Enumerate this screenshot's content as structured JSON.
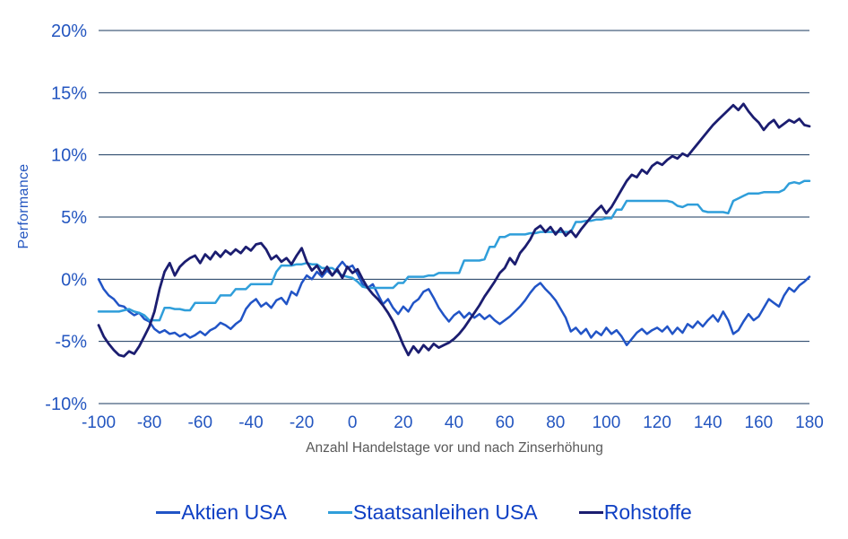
{
  "chart_data": {
    "type": "line",
    "title": "",
    "ylabel": "Performance",
    "xlabel": "Anzahl Handelstage vor und nach Zinserhöhung",
    "grid": "horizontal",
    "legend_position": "bottom",
    "xlim": [
      -100,
      180
    ],
    "ylim": [
      -10,
      20
    ],
    "xticks": [
      -100,
      -80,
      -60,
      -40,
      -20,
      0,
      20,
      40,
      60,
      80,
      100,
      120,
      140,
      160,
      180
    ],
    "yticks": [
      {
        "value": 20,
        "label": "20%"
      },
      {
        "value": 15,
        "label": "15%"
      },
      {
        "value": 10,
        "label": "10%"
      },
      {
        "value": 5,
        "label": "5%"
      },
      {
        "value": 0,
        "label": "0%"
      },
      {
        "value": -5,
        "label": "-5%"
      },
      {
        "value": -10,
        "label": "-10%"
      }
    ],
    "x": {
      "start": -100,
      "end": 180,
      "step": 2,
      "unit": "Handelstage"
    },
    "y_unit": "%",
    "series": [
      {
        "name": "Aktien USA",
        "color": "#2154c6",
        "values": [
          0.0,
          -0.8,
          -1.3,
          -1.6,
          -2.1,
          -2.2,
          -2.6,
          -2.9,
          -2.7,
          -3.2,
          -3.4,
          -4.0,
          -4.3,
          -4.1,
          -4.4,
          -4.3,
          -4.6,
          -4.4,
          -4.7,
          -4.5,
          -4.2,
          -4.5,
          -4.1,
          -3.9,
          -3.5,
          -3.7,
          -4.0,
          -3.6,
          -3.3,
          -2.4,
          -1.9,
          -1.6,
          -2.2,
          -1.9,
          -2.3,
          -1.7,
          -1.5,
          -2.0,
          -1.0,
          -1.3,
          -0.3,
          0.3,
          0.0,
          0.6,
          0.2,
          0.7,
          0.3,
          0.9,
          1.4,
          0.9,
          1.1,
          0.4,
          -0.4,
          -0.7,
          -0.4,
          -1.2,
          -2.0,
          -1.6,
          -2.3,
          -2.8,
          -2.2,
          -2.6,
          -1.9,
          -1.6,
          -1.0,
          -0.8,
          -1.5,
          -2.3,
          -2.9,
          -3.4,
          -2.9,
          -2.6,
          -3.1,
          -2.7,
          -3.1,
          -2.8,
          -3.2,
          -2.9,
          -3.3,
          -3.6,
          -3.3,
          -3.0,
          -2.6,
          -2.2,
          -1.7,
          -1.1,
          -0.6,
          -0.3,
          -0.8,
          -1.2,
          -1.7,
          -2.4,
          -3.1,
          -4.2,
          -3.9,
          -4.4,
          -4.0,
          -4.7,
          -4.2,
          -4.5,
          -3.9,
          -4.4,
          -4.1,
          -4.6,
          -5.3,
          -4.8,
          -4.3,
          -4.0,
          -4.4,
          -4.1,
          -3.9,
          -4.2,
          -3.8,
          -4.4,
          -3.9,
          -4.3,
          -3.6,
          -3.9,
          -3.4,
          -3.8,
          -3.3,
          -2.9,
          -3.4,
          -2.6,
          -3.3,
          -4.4,
          -4.1,
          -3.4,
          -2.8,
          -3.3,
          -3.0,
          -2.3,
          -1.6,
          -1.9,
          -2.2,
          -1.3,
          -0.7,
          -1.0,
          -0.5,
          -0.2,
          0.2
        ]
      },
      {
        "name": "Staatsanleihen USA",
        "color": "#2f9eda",
        "values": [
          -2.6,
          -2.6,
          -2.6,
          -2.6,
          -2.6,
          -2.5,
          -2.4,
          -2.6,
          -2.7,
          -2.9,
          -3.3,
          -3.3,
          -3.3,
          -2.3,
          -2.3,
          -2.4,
          -2.4,
          -2.5,
          -2.5,
          -1.9,
          -1.9,
          -1.9,
          -1.9,
          -1.9,
          -1.3,
          -1.3,
          -1.3,
          -0.8,
          -0.8,
          -0.8,
          -0.4,
          -0.4,
          -0.4,
          -0.4,
          -0.4,
          0.6,
          1.1,
          1.1,
          1.1,
          1.2,
          1.2,
          1.3,
          1.2,
          1.2,
          0.9,
          0.9,
          0.9,
          0.6,
          0.3,
          0.2,
          0.1,
          -0.2,
          -0.6,
          -0.7,
          -0.7,
          -0.7,
          -0.7,
          -0.7,
          -0.7,
          -0.3,
          -0.3,
          0.2,
          0.2,
          0.2,
          0.2,
          0.3,
          0.3,
          0.5,
          0.5,
          0.5,
          0.5,
          0.5,
          1.5,
          1.5,
          1.5,
          1.5,
          1.6,
          2.6,
          2.6,
          3.4,
          3.4,
          3.6,
          3.6,
          3.6,
          3.6,
          3.7,
          3.7,
          3.8,
          3.8,
          3.8,
          3.8,
          3.8,
          3.8,
          3.8,
          4.6,
          4.6,
          4.7,
          4.7,
          4.8,
          4.8,
          4.9,
          4.9,
          5.6,
          5.6,
          6.3,
          6.3,
          6.3,
          6.3,
          6.3,
          6.3,
          6.3,
          6.3,
          6.3,
          6.2,
          5.9,
          5.8,
          6.0,
          6.0,
          6.0,
          5.5,
          5.4,
          5.4,
          5.4,
          5.4,
          5.3,
          6.3,
          6.5,
          6.7,
          6.9,
          6.9,
          6.9,
          7.0,
          7.0,
          7.0,
          7.0,
          7.2,
          7.7,
          7.8,
          7.7,
          7.9,
          7.9
        ]
      },
      {
        "name": "Rohstoffe",
        "color": "#1b1d70",
        "values": [
          -3.7,
          -4.6,
          -5.2,
          -5.7,
          -6.1,
          -6.2,
          -5.8,
          -6.0,
          -5.4,
          -4.6,
          -3.8,
          -2.6,
          -0.8,
          0.6,
          1.3,
          0.3,
          1.0,
          1.4,
          1.7,
          1.9,
          1.3,
          2.0,
          1.6,
          2.2,
          1.8,
          2.3,
          2.0,
          2.4,
          2.1,
          2.6,
          2.3,
          2.8,
          2.9,
          2.4,
          1.6,
          1.9,
          1.4,
          1.7,
          1.2,
          1.9,
          2.5,
          1.4,
          0.7,
          1.1,
          0.4,
          1.0,
          0.3,
          0.8,
          0.1,
          1.0,
          0.5,
          0.8,
          0.0,
          -0.7,
          -1.2,
          -1.6,
          -2.1,
          -2.7,
          -3.4,
          -4.3,
          -5.3,
          -6.1,
          -5.4,
          -5.9,
          -5.3,
          -5.7,
          -5.2,
          -5.5,
          -5.3,
          -5.1,
          -4.8,
          -4.4,
          -3.9,
          -3.3,
          -2.7,
          -2.1,
          -1.4,
          -0.8,
          -0.2,
          0.5,
          0.9,
          1.7,
          1.2,
          2.1,
          2.6,
          3.2,
          4.0,
          4.3,
          3.8,
          4.2,
          3.6,
          4.1,
          3.5,
          3.9,
          3.4,
          4.0,
          4.5,
          5.0,
          5.5,
          5.9,
          5.3,
          5.8,
          6.5,
          7.2,
          7.9,
          8.4,
          8.2,
          8.8,
          8.5,
          9.1,
          9.4,
          9.2,
          9.6,
          9.9,
          9.7,
          10.1,
          9.9,
          10.4,
          10.9,
          11.4,
          11.9,
          12.4,
          12.8,
          13.2,
          13.6,
          14.0,
          13.6,
          14.1,
          13.5,
          13.0,
          12.6,
          12.0,
          12.5,
          12.8,
          12.2,
          12.5,
          12.8,
          12.6,
          12.9,
          12.4,
          12.3
        ]
      }
    ],
    "colors": {
      "gridline": "#17375e",
      "tick_label": "#2456c0",
      "axis_title": "#595959",
      "legend_text": "#0f40c4",
      "background": "#ffffff"
    }
  }
}
